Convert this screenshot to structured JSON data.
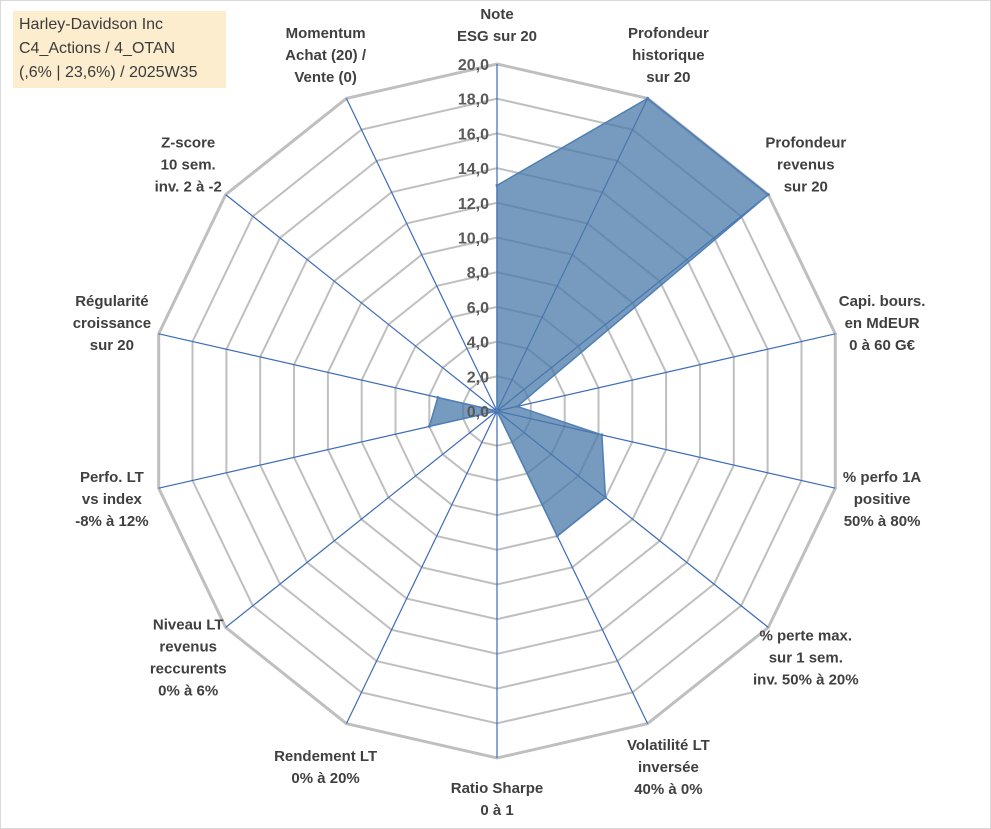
{
  "info": {
    "lines": [
      "Harley-Davidson Inc",
      "C4_Actions / 4_OTAN",
      "(,6% | 23,6%) / 2025W35"
    ]
  },
  "chart_data": {
    "type": "radar",
    "title": "",
    "scale_min": 0,
    "scale_max": 20,
    "scale_step": 2,
    "tick_labels": [
      "0,0",
      "2,0",
      "4,0",
      "6,0",
      "8,0",
      "10,0",
      "12,0",
      "14,0",
      "16,0",
      "18,0",
      "20,0"
    ],
    "gridlines": true,
    "legend": "none",
    "colors": {
      "fill": "#4a78aa",
      "stroke": "#4f7fb5",
      "grid": "#bfbfbf",
      "spoke": "#3d6bb8"
    },
    "axes": [
      {
        "lines": [
          "Note",
          "ESG sur 20"
        ],
        "value": 13.0
      },
      {
        "lines": [
          "Profondeur",
          "historique",
          "sur 20"
        ],
        "value": 20.0
      },
      {
        "lines": [
          "Profondeur",
          "revenus",
          "sur 20"
        ],
        "value": 20.0
      },
      {
        "lines": [
          "Capi. bours.",
          "en MdEUR",
          "0 à 60 G€"
        ],
        "value": 1.2
      },
      {
        "lines": [
          "% perfo 1A",
          "positive",
          "50% à 80%"
        ],
        "value": 6.2
      },
      {
        "lines": [
          "% perte max.",
          "sur 1 sem.",
          "inv. 50% à 20%"
        ],
        "value": 8.0
      },
      {
        "lines": [
          "Volatilité LT",
          "inversée",
          "40% à 0%"
        ],
        "value": 8.0
      },
      {
        "lines": [
          "Ratio Sharpe",
          "0 à 1"
        ],
        "value": 0.0
      },
      {
        "lines": [
          "Rendement LT",
          "0% à 20%"
        ],
        "value": 0.0
      },
      {
        "lines": [
          "Niveau LT",
          "revenus",
          "reccurents",
          "0% à 6%"
        ],
        "value": 0.0
      },
      {
        "lines": [
          "Perfo. LT",
          "vs index",
          "-8% à 12%"
        ],
        "value": 4.0
      },
      {
        "lines": [
          "Régularité",
          "croissance",
          "sur 20"
        ],
        "value": 3.5
      },
      {
        "lines": [
          "Z-score",
          "10 sem.",
          "inv. 2 à -2"
        ],
        "value": 0.0
      },
      {
        "lines": [
          "Momentum",
          "Achat (20) /",
          "Vente (0)"
        ],
        "value": 0.0
      }
    ]
  }
}
